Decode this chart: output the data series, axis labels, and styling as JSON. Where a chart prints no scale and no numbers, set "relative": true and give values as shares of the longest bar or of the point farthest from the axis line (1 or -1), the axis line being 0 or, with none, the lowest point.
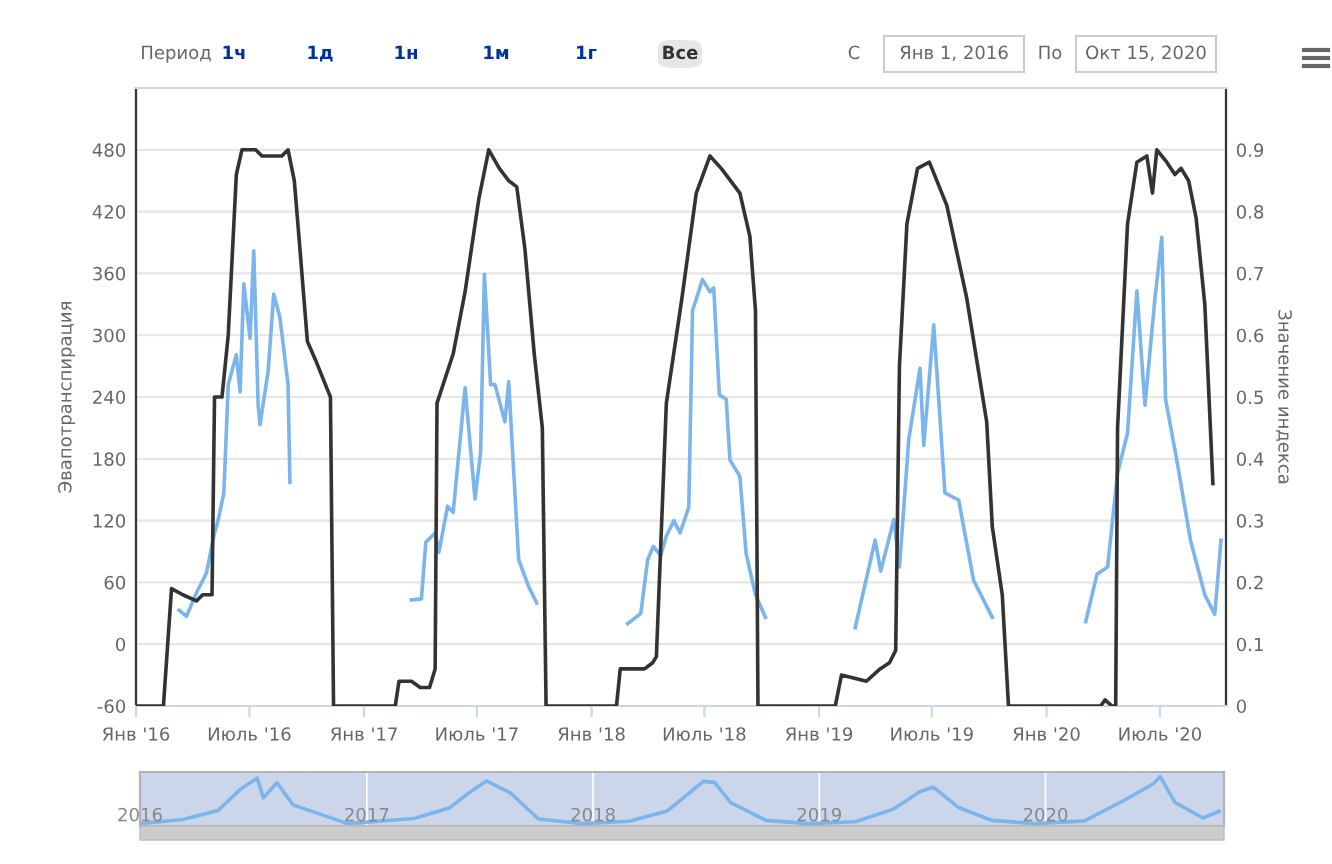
{
  "chart_data": [
    {
      "type": "line",
      "ylabel": "Эвапотранспирация",
      "y2label": "Значение индекса",
      "annotations": [
        "Период",
        "1ч",
        "1д",
        "1н",
        "1м",
        "1г",
        "Все",
        "С",
        "Янв 1, 2016",
        "По",
        "Окт 15, 2020"
      ],
      "grid": "y",
      "xlim": [
        "2016-01-01",
        "2020-10-15"
      ],
      "xticks": [
        {
          "value": "2016-01-01",
          "label": "Янв '16"
        },
        {
          "value": "2016-07-01",
          "label": "Июль '16"
        },
        {
          "value": "2017-01-01",
          "label": "Янв '17"
        },
        {
          "value": "2017-07-01",
          "label": "Июль '17"
        },
        {
          "value": "2018-01-01",
          "label": "Янв '18"
        },
        {
          "value": "2018-07-01",
          "label": "Июль '18"
        },
        {
          "value": "2019-01-01",
          "label": "Янв '19"
        },
        {
          "value": "2019-07-01",
          "label": "Июль '19"
        },
        {
          "value": "2020-01-01",
          "label": "Янв '20"
        },
        {
          "value": "2020-07-01",
          "label": "Июль '20"
        }
      ],
      "ylim": [
        -60,
        540
      ],
      "yticks": [
        -60,
        0,
        60,
        120,
        180,
        240,
        300,
        360,
        420,
        480
      ],
      "y2lim": [
        0,
        1.0
      ],
      "y2ticks": [
        0,
        0.1,
        0.2,
        0.3,
        0.4,
        0.5,
        0.6,
        0.7,
        0.8,
        0.9
      ],
      "series": [
        {
          "color": "#7cb5ec",
          "x": [
            "2016-03-10",
            "2016-03-22",
            "2016-04-07",
            "2016-04-23",
            "2016-05-06",
            "2016-05-12",
            "2016-05-21",
            "2016-05-28",
            "2016-06-10",
            "2016-06-16",
            "2016-06-22",
            "2016-07-02",
            "2016-07-08",
            "2016-07-15",
            "2016-07-18",
            "2016-07-31",
            "2016-08-09",
            "2016-08-19",
            "2016-09-01",
            "2016-09-04",
            "2016-12-01",
            "2017-03-18",
            "2017-04-03",
            "2017-04-10",
            "2017-04-25",
            "2017-05-01",
            "2017-05-15",
            "2017-05-24",
            "2017-06-12",
            "2017-06-28",
            "2017-07-07",
            "2017-07-13",
            "2017-07-23",
            "2017-07-30",
            "2017-08-15",
            "2017-08-21",
            "2017-09-06",
            "2017-09-22",
            "2017-10-05",
            "2017-12-15",
            "2018-02-28",
            "2018-03-21",
            "2018-04-01",
            "2018-04-10",
            "2018-04-22",
            "2018-05-01",
            "2018-05-13",
            "2018-05-23",
            "2018-06-06",
            "2018-06-12",
            "2018-06-28",
            "2018-07-10",
            "2018-07-16",
            "2018-07-25",
            "2018-08-05",
            "2018-08-11",
            "2018-08-27",
            "2018-09-06",
            "2018-09-21",
            "2018-10-07",
            "2018-12-15",
            "2019-02-28",
            "2019-04-01",
            "2019-04-10",
            "2019-05-01",
            "2019-05-10",
            "2019-05-25",
            "2019-06-12",
            "2019-06-18",
            "2019-07-04",
            "2019-07-22",
            "2019-08-13",
            "2019-09-06",
            "2019-10-06",
            "2019-12-15",
            "2020-03-04",
            "2020-03-22",
            "2020-04-08",
            "2020-04-24",
            "2020-05-10",
            "2020-05-25",
            "2020-06-07",
            "2020-06-23",
            "2020-07-04",
            "2020-07-10",
            "2020-07-28",
            "2020-08-19",
            "2020-09-11",
            "2020-09-27",
            "2020-10-07"
          ],
          "values": [
            33,
            27,
            50,
            69,
            108,
            121,
            147,
            252,
            281,
            245,
            350,
            297,
            382,
            232,
            213,
            265,
            340,
            317,
            252,
            157,
            null,
            43,
            44,
            99,
            108,
            89,
            134,
            128,
            249,
            141,
            187,
            359,
            252,
            252,
            216,
            255,
            82,
            56,
            40,
            null,
            20,
            30,
            82,
            95,
            86,
            105,
            120,
            108,
            133,
            324,
            354,
            342,
            346,
            242,
            238,
            179,
            163,
            88,
            48,
            26,
            null,
            16,
            101,
            71,
            121,
            75,
            199,
            268,
            193,
            310,
            147,
            140,
            62,
            26,
            null,
            22,
            68,
            75,
            166,
            205,
            343,
            232,
            336,
            395,
            238,
            179,
            101,
            48,
            29,
            101
          ]
        },
        {
          "color": "#333333",
          "axis": "y2",
          "x": [
            "2016-01-01",
            "2016-02-14",
            "2016-02-27",
            "2016-03-16",
            "2016-04-07",
            "2016-04-17",
            "2016-05-02",
            "2016-05-06",
            "2016-05-18",
            "2016-05-28",
            "2016-06-10",
            "2016-06-19",
            "2016-07-11",
            "2016-07-21",
            "2016-08-22",
            "2016-09-01",
            "2016-09-11",
            "2016-09-20",
            "2016-10-02",
            "2016-10-15",
            "2016-11-04",
            "2016-11-08",
            "2016-11-13",
            "2017-01-19",
            "2017-02-20",
            "2017-02-26",
            "2017-03-18",
            "2017-04-01",
            "2017-04-16",
            "2017-04-25",
            "2017-04-28",
            "2017-05-24",
            "2017-06-12",
            "2017-07-04",
            "2017-07-20",
            "2017-08-06",
            "2017-08-21",
            "2017-09-03",
            "2017-09-16",
            "2017-10-01",
            "2017-10-14",
            "2017-10-20",
            "2018-01-02",
            "2018-02-10",
            "2018-02-16",
            "2018-03-27",
            "2018-04-09",
            "2018-04-15",
            "2018-05-01",
            "2018-05-26",
            "2018-06-18",
            "2018-07-10",
            "2018-07-28",
            "2018-08-27",
            "2018-09-12",
            "2018-09-21",
            "2018-09-25",
            "2019-01-27",
            "2019-02-06",
            "2019-03-18",
            "2019-04-09",
            "2019-04-24",
            "2019-05-04",
            "2019-05-10",
            "2019-05-22",
            "2019-06-08",
            "2019-06-27",
            "2019-07-25",
            "2019-08-26",
            "2019-09-27",
            "2019-10-06",
            "2019-10-22",
            "2019-11-01",
            "2020-03-28",
            "2020-04-04",
            "2020-04-15",
            "2020-04-21",
            "2020-04-24",
            "2020-05-10",
            "2020-05-25",
            "2020-06-10",
            "2020-06-19",
            "2020-06-26",
            "2020-07-12",
            "2020-07-25",
            "2020-08-04",
            "2020-08-16",
            "2020-08-28",
            "2020-09-11",
            "2020-09-24"
          ],
          "values": [
            0,
            0,
            0.19,
            0.18,
            0.17,
            0.18,
            0.18,
            0.5,
            0.5,
            0.6,
            0.86,
            0.9,
            0.9,
            0.89,
            0.89,
            0.9,
            0.85,
            0.74,
            0.59,
            0.56,
            0.51,
            0.5,
            0,
            0,
            0,
            0.04,
            0.04,
            0.03,
            0.03,
            0.06,
            0.49,
            0.57,
            0.67,
            0.82,
            0.9,
            0.87,
            0.85,
            0.84,
            0.74,
            0.57,
            0.45,
            0,
            0,
            0,
            0.06,
            0.06,
            0.07,
            0.08,
            0.49,
            0.66,
            0.83,
            0.89,
            0.87,
            0.83,
            0.76,
            0.64,
            0,
            0,
            0.05,
            0.04,
            0.06,
            0.07,
            0.09,
            0.55,
            0.78,
            0.87,
            0.88,
            0.81,
            0.66,
            0.46,
            0.29,
            0.18,
            0,
            0,
            0.01,
            0,
            0,
            0.45,
            0.78,
            0.88,
            0.89,
            0.83,
            0.9,
            0.88,
            0.86,
            0.87,
            0.85,
            0.79,
            0.65,
            0.36
          ]
        }
      ]
    },
    {
      "type": "line",
      "relative": true,
      "tick_labels": "x",
      "grid": "x",
      "xlim": [
        "2016-01-01",
        "2020-10-15"
      ],
      "xticks": [
        {
          "value": "2016-01-01",
          "label": "2016"
        },
        {
          "value": "2017-01-01",
          "label": "2017"
        },
        {
          "value": "2018-01-01",
          "label": "2018"
        },
        {
          "value": "2019-01-01",
          "label": "2019"
        },
        {
          "value": "2020-01-01",
          "label": "2020"
        }
      ],
      "series": [
        {
          "color": "#7cb5ec",
          "x": [
            "2016-01-01",
            "2016-03-10",
            "2016-05-06",
            "2016-06-10",
            "2016-07-08",
            "2016-07-18",
            "2016-08-09",
            "2016-09-04",
            "2016-12-01",
            "2017-03-18",
            "2017-05-15",
            "2017-06-12",
            "2017-07-13",
            "2017-08-21",
            "2017-10-05",
            "2017-12-15",
            "2018-02-28",
            "2018-05-01",
            "2018-06-28",
            "2018-07-16",
            "2018-08-11",
            "2018-10-07",
            "2018-12-15",
            "2019-02-28",
            "2019-05-01",
            "2019-06-12",
            "2019-07-04",
            "2019-08-13",
            "2019-10-06",
            "2019-12-15",
            "2020-03-04",
            "2020-05-10",
            "2020-06-23",
            "2020-07-04",
            "2020-07-28",
            "2020-09-11",
            "2020-10-07"
          ],
          "values": [
            0,
            0.09,
            0.28,
            0.72,
            0.97,
            0.55,
            0.87,
            0.4,
            0,
            0.11,
            0.34,
            0.63,
            0.91,
            0.65,
            0.1,
            0,
            0.05,
            0.27,
            0.9,
            0.88,
            0.45,
            0.07,
            0,
            0.04,
            0.31,
            0.68,
            0.78,
            0.35,
            0.07,
            0,
            0.06,
            0.52,
            0.85,
            1.0,
            0.45,
            0.12,
            0.26
          ]
        }
      ]
    }
  ]
}
